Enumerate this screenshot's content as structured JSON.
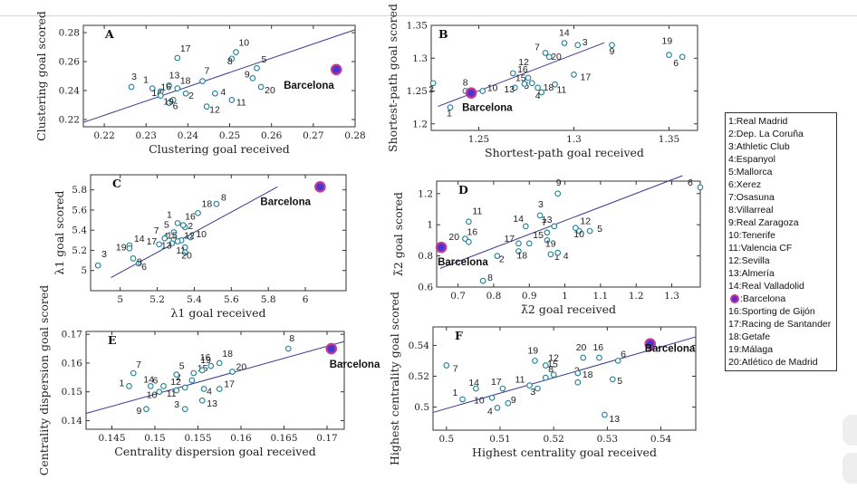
{
  "chart_data": [
    {
      "type": "scatter",
      "id": "A",
      "xlabel": "Clustering goal received",
      "ylabel": "Clustering goal scored",
      "xlim": [
        0.215,
        0.28
      ],
      "ylim": [
        0.215,
        0.285
      ],
      "xticks": [
        "0.22",
        "0.23",
        "0.24",
        "0.25",
        "0.26",
        "0.27",
        "0.28"
      ],
      "yticks": [
        "0.22",
        "0.24",
        "0.26",
        "0.28"
      ],
      "fit": [
        [
          0.215,
          0.218
        ],
        [
          0.28,
          0.282
        ]
      ],
      "points": [
        {
          "label": "1",
          "x": 0.2315,
          "y": 0.2415
        },
        {
          "label": "2",
          "x": 0.2395,
          "y": 0.238
        },
        {
          "label": "3",
          "x": 0.2265,
          "y": 0.2425
        },
        {
          "label": "4",
          "x": 0.2465,
          "y": 0.238
        },
        {
          "label": "5",
          "x": 0.2565,
          "y": 0.2555
        },
        {
          "label": "6",
          "x": 0.2355,
          "y": 0.2315
        },
        {
          "label": "7",
          "x": 0.2435,
          "y": 0.2465
        },
        {
          "label": "8",
          "x": 0.2505,
          "y": 0.262
        },
        {
          "label": "9",
          "x": 0.2555,
          "y": 0.2485
        },
        {
          "label": "10",
          "x": 0.2515,
          "y": 0.2665
        },
        {
          "label": "11",
          "x": 0.2505,
          "y": 0.2335
        },
        {
          "label": "12",
          "x": 0.2445,
          "y": 0.229
        },
        {
          "label": "13",
          "x": 0.2355,
          "y": 0.2435
        },
        {
          "label": "14",
          "x": 0.2335,
          "y": 0.2395
        },
        {
          "label": "16",
          "x": 0.2335,
          "y": 0.2365
        },
        {
          "label": "17",
          "x": 0.2375,
          "y": 0.2625
        },
        {
          "label": "18",
          "x": 0.2375,
          "y": 0.2415
        },
        {
          "label": "19",
          "x": 0.2365,
          "y": 0.2335
        },
        {
          "label": "20",
          "x": 0.2575,
          "y": 0.2425
        }
      ],
      "highlight": {
        "label": "Barcelona",
        "x": 0.2755,
        "y": 0.2545
      }
    },
    {
      "type": "scatter",
      "id": "B",
      "xlabel": "Shortest-path goal received",
      "ylabel": "Shortest-path goal scored",
      "xlim": [
        1.225,
        1.365
      ],
      "ylim": [
        1.19,
        1.35
      ],
      "xticks": [
        "1.25",
        "1.3",
        "1.35"
      ],
      "yticks": [
        "1.2",
        "1.25",
        "1.3",
        "1.35"
      ],
      "fit": [
        [
          1.2285,
          1.2265
        ],
        [
          1.316,
          1.3235
        ]
      ],
      "points": [
        {
          "label": "1",
          "x": 1.235,
          "y": 1.225
        },
        {
          "label": "2",
          "x": 1.226,
          "y": 1.262
        },
        {
          "label": "3",
          "x": 1.302,
          "y": 1.32
        },
        {
          "label": "4",
          "x": 1.283,
          "y": 1.248
        },
        {
          "label": "5",
          "x": 1.278,
          "y": 1.262
        },
        {
          "label": "6",
          "x": 1.357,
          "y": 1.302
        },
        {
          "label": "7",
          "x": 1.285,
          "y": 1.308
        },
        {
          "label": "8",
          "x": 1.243,
          "y": 1.25
        },
        {
          "label": "9",
          "x": 1.32,
          "y": 1.32
        },
        {
          "label": "10",
          "x": 1.252,
          "y": 1.25
        },
        {
          "label": "11",
          "x": 1.29,
          "y": 1.26
        },
        {
          "label": "12",
          "x": 1.268,
          "y": 1.277
        },
        {
          "label": "13",
          "x": 1.269,
          "y": 1.255
        },
        {
          "label": "14",
          "x": 1.295,
          "y": 1.323
        },
        {
          "label": "15",
          "x": 1.274,
          "y": 1.261
        },
        {
          "label": "16",
          "x": 1.276,
          "y": 1.27
        },
        {
          "label": "17",
          "x": 1.3,
          "y": 1.275
        },
        {
          "label": "18",
          "x": 1.281,
          "y": 1.255
        },
        {
          "label": "19",
          "x": 1.35,
          "y": 1.305
        },
        {
          "label": "20",
          "x": 1.287,
          "y": 1.302
        }
      ],
      "highlight": {
        "label": "Barcelona",
        "x": 1.246,
        "y": 1.247
      }
    },
    {
      "type": "scatter",
      "id": "C",
      "xlabel": "λ1 goal received",
      "ylabel": "λ1 goal scored",
      "xlim": [
        4.84,
        6.22
      ],
      "ylim": [
        4.8,
        5.95
      ],
      "xticks": [
        "5",
        "5.2",
        "5.4",
        "5.6",
        "5.8",
        "6"
      ],
      "yticks": [
        "5",
        "5.2",
        "5.4",
        "5.6",
        "5.8"
      ],
      "fit": [
        [
          4.95,
          4.93
        ],
        [
          5.85,
          5.83
        ]
      ],
      "points": [
        {
          "label": "1",
          "x": 5.31,
          "y": 5.47
        },
        {
          "label": "2",
          "x": 5.35,
          "y": 5.43
        },
        {
          "label": "3",
          "x": 4.88,
          "y": 5.05
        },
        {
          "label": "4",
          "x": 5.29,
          "y": 5.31
        },
        {
          "label": "5",
          "x": 5.29,
          "y": 5.38
        },
        {
          "label": "6",
          "x": 5.1,
          "y": 5.07
        },
        {
          "label": "7",
          "x": 5.24,
          "y": 5.32
        },
        {
          "label": "8",
          "x": 5.52,
          "y": 5.66
        },
        {
          "label": "9",
          "x": 5.07,
          "y": 5.12
        },
        {
          "label": "10",
          "x": 5.38,
          "y": 5.33
        },
        {
          "label": "11",
          "x": 5.35,
          "y": 5.23
        },
        {
          "label": "12",
          "x": 5.33,
          "y": 5.3
        },
        {
          "label": "13",
          "x": 5.28,
          "y": 5.27
        },
        {
          "label": "14",
          "x": 5.05,
          "y": 5.25
        },
        {
          "label": "15",
          "x": 5.31,
          "y": 5.29
        },
        {
          "label": "16",
          "x": 5.34,
          "y": 5.45
        },
        {
          "label": "17",
          "x": 5.21,
          "y": 5.26
        },
        {
          "label": "18",
          "x": 5.42,
          "y": 5.57
        },
        {
          "label": "19",
          "x": 5.05,
          "y": 5.22
        },
        {
          "label": "20",
          "x": 5.35,
          "y": 5.18
        }
      ],
      "highlight": {
        "label": "Barcelona",
        "x": 6.08,
        "y": 5.83
      }
    },
    {
      "type": "scatter",
      "id": "D",
      "xlabel": "λ̃2 goal received",
      "ylabel": "λ̃2 goal scored",
      "xlim": [
        0.64,
        1.38
      ],
      "ylim": [
        0.6,
        1.28
      ],
      "xticks": [
        "0.7",
        "0.8",
        "0.9",
        "1",
        "1.1",
        "1.2",
        "1.3"
      ],
      "yticks": [
        "0.6",
        "0.8",
        "1",
        "1.2"
      ],
      "fit": [
        [
          0.65,
          0.72
        ],
        [
          1.33,
          1.315
        ]
      ],
      "points": [
        {
          "label": "1",
          "x": 0.96,
          "y": 0.81
        },
        {
          "label": "2",
          "x": 0.81,
          "y": 0.8
        },
        {
          "label": "3",
          "x": 0.93,
          "y": 1.06
        },
        {
          "label": "4",
          "x": 0.98,
          "y": 0.82
        },
        {
          "label": "5",
          "x": 1.07,
          "y": 0.96
        },
        {
          "label": "6",
          "x": 1.38,
          "y": 1.24
        },
        {
          "label": "7",
          "x": 0.95,
          "y": 0.95
        },
        {
          "label": "8",
          "x": 0.77,
          "y": 0.64
        },
        {
          "label": "9",
          "x": 0.98,
          "y": 1.2
        },
        {
          "label": "10",
          "x": 1.04,
          "y": 0.96
        },
        {
          "label": "11",
          "x": 0.73,
          "y": 1.02
        },
        {
          "label": "12",
          "x": 1.03,
          "y": 0.98
        },
        {
          "label": "13",
          "x": 0.97,
          "y": 0.99
        },
        {
          "label": "14",
          "x": 0.89,
          "y": 0.99
        },
        {
          "label": "15",
          "x": 0.9,
          "y": 0.88
        },
        {
          "label": "16",
          "x": 0.72,
          "y": 0.91
        },
        {
          "label": "17",
          "x": 0.87,
          "y": 0.88
        },
        {
          "label": "18",
          "x": 0.87,
          "y": 0.83
        },
        {
          "label": "19",
          "x": 0.95,
          "y": 0.9
        },
        {
          "label": "20",
          "x": 0.73,
          "y": 0.89
        }
      ],
      "highlight": {
        "label": "Barcelona",
        "x": 0.653,
        "y": 0.855
      }
    },
    {
      "type": "scatter",
      "id": "E",
      "xlabel": "Centrality dispersion goal received",
      "ylabel": "Centrality dispersion goal scored",
      "xlim": [
        0.142,
        0.172
      ],
      "ylim": [
        0.137,
        0.171
      ],
      "xticks": [
        "0.145",
        "0.15",
        "0.155",
        "0.16",
        "0.165",
        "0.17"
      ],
      "yticks": [
        "0.14",
        "0.15",
        "0.16",
        "0.17"
      ],
      "fit": [
        [
          0.142,
          0.1425
        ],
        [
          0.172,
          0.1675
        ]
      ],
      "points": [
        {
          "label": "1",
          "x": 0.147,
          "y": 0.152
        },
        {
          "label": "2",
          "x": 0.1543,
          "y": 0.154
        },
        {
          "label": "3",
          "x": 0.1535,
          "y": 0.144
        },
        {
          "label": "4",
          "x": 0.1557,
          "y": 0.151
        },
        {
          "label": "5",
          "x": 0.1525,
          "y": 0.156
        },
        {
          "label": "6",
          "x": 0.151,
          "y": 0.152
        },
        {
          "label": "7",
          "x": 0.1475,
          "y": 0.1565
        },
        {
          "label": "8",
          "x": 0.1655,
          "y": 0.165
        },
        {
          "label": "9",
          "x": 0.149,
          "y": 0.144
        },
        {
          "label": "10",
          "x": 0.1505,
          "y": 0.15
        },
        {
          "label": "11",
          "x": 0.1525,
          "y": 0.1505
        },
        {
          "label": "12",
          "x": 0.1535,
          "y": 0.1515
        },
        {
          "label": "13",
          "x": 0.1555,
          "y": 0.147
        },
        {
          "label": "14",
          "x": 0.1495,
          "y": 0.152
        },
        {
          "label": "15",
          "x": 0.1545,
          "y": 0.1565
        },
        {
          "label": "16",
          "x": 0.1565,
          "y": 0.159
        },
        {
          "label": "17",
          "x": 0.1575,
          "y": 0.151
        },
        {
          "label": "18",
          "x": 0.1575,
          "y": 0.16
        },
        {
          "label": "19",
          "x": 0.1555,
          "y": 0.1575
        },
        {
          "label": "20",
          "x": 0.159,
          "y": 0.157
        }
      ],
      "highlight": {
        "label": "Barcelona",
        "x": 0.1705,
        "y": 0.165
      }
    },
    {
      "type": "scatter",
      "id": "F",
      "xlabel": "Highest centrality goal received",
      "ylabel": "Highest centrality goal scored",
      "xlim": [
        0.4975,
        0.5465
      ],
      "ylim": [
        0.485,
        0.552
      ],
      "xticks": [
        "0.5",
        "0.51",
        "0.52",
        "0.53",
        "0.54"
      ],
      "yticks": [
        "0.5",
        "0.52",
        "0.54"
      ],
      "fit": [
        [
          0.4975,
          0.4965
        ],
        [
          0.5465,
          0.5455
        ]
      ],
      "points": [
        {
          "label": "1",
          "x": 0.503,
          "y": 0.505
        },
        {
          "label": "2",
          "x": 0.5245,
          "y": 0.516
        },
        {
          "label": "3",
          "x": 0.517,
          "y": 0.512
        },
        {
          "label": "4",
          "x": 0.5095,
          "y": 0.4995
        },
        {
          "label": "5",
          "x": 0.531,
          "y": 0.518
        },
        {
          "label": "6",
          "x": 0.532,
          "y": 0.53
        },
        {
          "label": "7",
          "x": 0.5,
          "y": 0.527
        },
        {
          "label": "8",
          "x": 0.5185,
          "y": 0.519
        },
        {
          "label": "9",
          "x": 0.5115,
          "y": 0.5025
        },
        {
          "label": "10",
          "x": 0.5085,
          "y": 0.506
        },
        {
          "label": "11",
          "x": 0.5155,
          "y": 0.514
        },
        {
          "label": "12",
          "x": 0.5185,
          "y": 0.527
        },
        {
          "label": "13",
          "x": 0.5295,
          "y": 0.495
        },
        {
          "label": "14",
          "x": 0.5055,
          "y": 0.512
        },
        {
          "label": "15",
          "x": 0.52,
          "y": 0.521
        },
        {
          "label": "16",
          "x": 0.5285,
          "y": 0.532
        },
        {
          "label": "17",
          "x": 0.5105,
          "y": 0.512
        },
        {
          "label": "18",
          "x": 0.5245,
          "y": 0.522
        },
        {
          "label": "19",
          "x": 0.5165,
          "y": 0.53
        },
        {
          "label": "20",
          "x": 0.5255,
          "y": 0.532
        }
      ],
      "highlight": {
        "label": "Barcelona",
        "x": 0.538,
        "y": 0.541
      }
    }
  ],
  "legend": {
    "items": [
      "1:Real Madrid",
      "2:Dep. La Coruña",
      "3:Athletic Club",
      "4:Espanyol",
      "5:Mallorca",
      "6:Xerez",
      "7:Osasuna",
      "8:Villarreal",
      "9:Real Zaragoza",
      "10:Tenerife",
      "11:Valencia CF",
      "12:Sevilla",
      "13:Almería",
      "14:Real Valladolid",
      ":Barcelona",
      "16:Sporting de Gijón",
      "17:Racing de Santander",
      "18:Getafe",
      "19:Málaga",
      "20:Atlético de Madrid"
    ]
  },
  "colors": {
    "marker_edge": "#1f7f97",
    "fit_line": "#3a3a8c",
    "barcelona_fill": "#4b35d2",
    "barcelona_edge": "#c53a8e",
    "axis": "#333333"
  }
}
